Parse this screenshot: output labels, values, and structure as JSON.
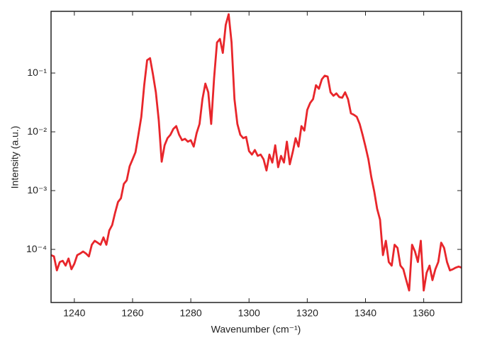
{
  "chart_data": {
    "type": "line",
    "xlabel": "Wavenumber (cm⁻¹)",
    "ylabel": "Intensity (a.u.)",
    "yscale": "log",
    "grid": false,
    "xlim": [
      1232,
      1373
    ],
    "ylim": [
      1.25e-05,
      1.12
    ],
    "xticks": [
      1240,
      1260,
      1280,
      1300,
      1320,
      1340,
      1360
    ],
    "yticks": [
      {
        "value": 0.0001,
        "label": "10⁻⁴"
      },
      {
        "value": 0.001,
        "label": "10⁻³"
      },
      {
        "value": 0.01,
        "label": "10⁻²"
      },
      {
        "value": 0.1,
        "label": "10⁻¹"
      }
    ],
    "x": [
      1232,
      1233,
      1234,
      1235,
      1236,
      1237,
      1238,
      1239,
      1240,
      1241,
      1242,
      1243,
      1244,
      1245,
      1246,
      1247,
      1248,
      1249,
      1250,
      1251,
      1252,
      1253,
      1254,
      1255,
      1256,
      1257,
      1258,
      1259,
      1260,
      1261,
      1262,
      1263,
      1264,
      1265,
      1266,
      1267,
      1268,
      1269,
      1270,
      1271,
      1272,
      1273,
      1274,
      1275,
      1276,
      1277,
      1278,
      1279,
      1280,
      1281,
      1282,
      1283,
      1284,
      1285,
      1286,
      1287,
      1288,
      1289,
      1290,
      1291,
      1292,
      1293,
      1294,
      1295,
      1296,
      1297,
      1298,
      1299,
      1300,
      1301,
      1302,
      1303,
      1304,
      1305,
      1306,
      1307,
      1308,
      1309,
      1310,
      1311,
      1312,
      1313,
      1314,
      1315,
      1316,
      1317,
      1318,
      1319,
      1320,
      1321,
      1322,
      1323,
      1324,
      1325,
      1326,
      1327,
      1328,
      1329,
      1330,
      1331,
      1332,
      1333,
      1334,
      1335,
      1336,
      1337,
      1338,
      1339,
      1340,
      1341,
      1342,
      1343,
      1344,
      1345,
      1346,
      1347,
      1348,
      1349,
      1350,
      1351,
      1352,
      1353,
      1354,
      1355,
      1356,
      1357,
      1358,
      1359,
      1360,
      1361,
      1362,
      1363,
      1364,
      1365,
      1366,
      1367,
      1368,
      1369,
      1370,
      1371,
      1372,
      1373
    ],
    "series": [
      {
        "color": "#e8262b",
        "values": [
          8e-05,
          7.6e-05,
          4.4e-05,
          6.1e-05,
          6.4e-05,
          5.3e-05,
          7e-05,
          4.6e-05,
          5.7e-05,
          8e-05,
          8.5e-05,
          9.2e-05,
          8.5e-05,
          7.6e-05,
          0.00012,
          0.00014,
          0.00013,
          0.00012,
          0.00016,
          0.00012,
          0.00021,
          0.00026,
          0.00042,
          0.00064,
          0.00074,
          0.0013,
          0.0015,
          0.0026,
          0.0034,
          0.0045,
          0.0089,
          0.018,
          0.062,
          0.165,
          0.179,
          0.095,
          0.047,
          0.0156,
          0.0031,
          0.0059,
          0.0078,
          0.0089,
          0.0112,
          0.0125,
          0.0089,
          0.0072,
          0.0076,
          0.0068,
          0.0072,
          0.0056,
          0.0095,
          0.0136,
          0.036,
          0.066,
          0.047,
          0.0136,
          0.082,
          0.33,
          0.38,
          0.22,
          0.66,
          1.0,
          0.33,
          0.036,
          0.0136,
          0.0089,
          0.0078,
          0.0082,
          0.0047,
          0.0041,
          0.0049,
          0.0039,
          0.0041,
          0.0034,
          0.0022,
          0.0041,
          0.003,
          0.0059,
          0.0025,
          0.0039,
          0.003,
          0.0068,
          0.0028,
          0.0045,
          0.0078,
          0.0056,
          0.0125,
          0.0105,
          0.0236,
          0.031,
          0.036,
          0.062,
          0.054,
          0.078,
          0.09,
          0.087,
          0.047,
          0.041,
          0.045,
          0.039,
          0.038,
          0.047,
          0.036,
          0.0206,
          0.0195,
          0.018,
          0.0136,
          0.0089,
          0.0056,
          0.0034,
          0.0017,
          0.00097,
          0.00049,
          0.00032,
          8e-05,
          0.00014,
          6.1e-05,
          5.3e-05,
          0.00012,
          0.000106,
          5.3e-05,
          4.6e-05,
          3e-05,
          2e-05,
          0.00012,
          9.2e-05,
          6.1e-05,
          0.00014,
          2e-05,
          4e-05,
          5.3e-05,
          3e-05,
          4.6e-05,
          6.1e-05,
          0.00013,
          0.000106,
          6.1e-05,
          4.4e-05,
          4.6e-05,
          4.9e-05,
          5.1e-05,
          4.9e-05
        ]
      }
    ]
  }
}
